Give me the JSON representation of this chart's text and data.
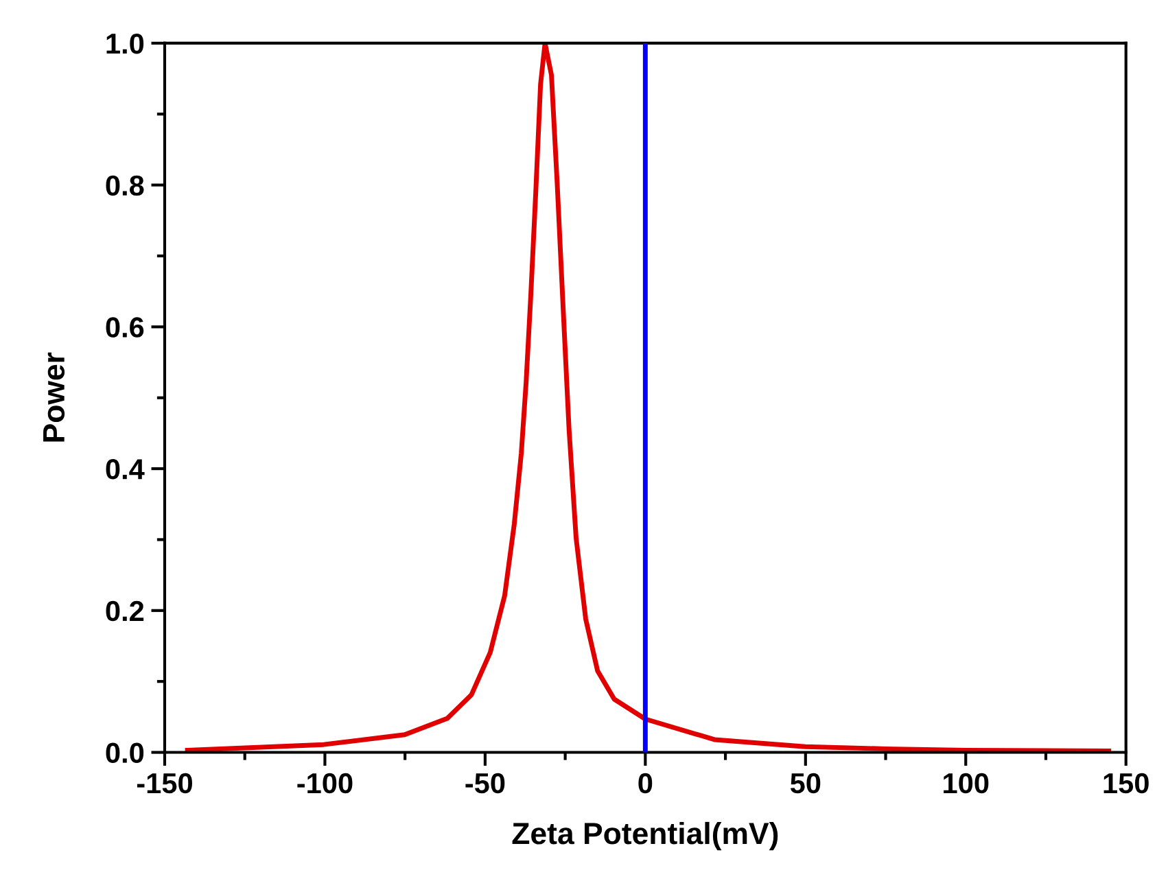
{
  "chart_data": {
    "type": "line",
    "xlabel": "Zeta Potential(mV)",
    "ylabel": "Power",
    "x": [
      -142.9,
      -100.4,
      -75.1,
      -61.8,
      -54.3,
      -48.4,
      -43.9,
      -40.9,
      -38.7,
      -37.2,
      -35.7,
      -34.2,
      -32.7,
      -31.3,
      -29.3,
      -27.5,
      -25.6,
      -23.8,
      -21.6,
      -18.6,
      -14.9,
      -9.7,
      0,
      21.6,
      50,
      75,
      100,
      144.6
    ],
    "series": [
      {
        "color": "#e00000",
        "values": [
          0.003,
          0.011,
          0.025,
          0.048,
          0.081,
          0.141,
          0.221,
          0.322,
          0.422,
          0.522,
          0.648,
          0.789,
          0.942,
          1.0,
          0.955,
          0.802,
          0.622,
          0.455,
          0.302,
          0.188,
          0.115,
          0.075,
          0.047,
          0.018,
          0.008,
          0.005,
          0.003,
          0.002
        ]
      }
    ],
    "ref_lines": [
      {
        "axis": "x",
        "value": 0,
        "label": null,
        "color": "#0000ff"
      }
    ],
    "xlim": [
      -150,
      150
    ],
    "xticks": [
      -150,
      -100,
      -50,
      0,
      50,
      100,
      150
    ],
    "ylim": [
      0,
      1.0
    ],
    "yticks": [
      {
        "value": 0,
        "label": "0.0"
      },
      0.2,
      0.4,
      0.6,
      0.8,
      {
        "value": 1,
        "label": "1.0"
      }
    ],
    "grid": false,
    "legend": false
  }
}
